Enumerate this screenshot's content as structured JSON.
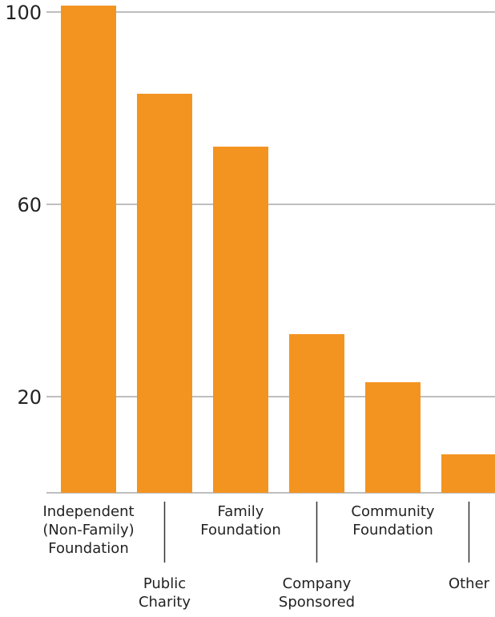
{
  "chart_data": {
    "type": "bar",
    "title": "",
    "xlabel": "",
    "ylabel": "",
    "categories": [
      "Independent (Non-Family) Foundation",
      "Public Charity",
      "Family Foundation",
      "Company Sponsored",
      "Community Foundation",
      "Other"
    ],
    "category_label_lines": [
      [
        "Independent",
        "(Non-Family)",
        "Foundation"
      ],
      [
        "Public",
        "Charity"
      ],
      [
        "Family",
        "Foundation"
      ],
      [
        "Company",
        "Sponsored"
      ],
      [
        "Community",
        "Foundation"
      ],
      [
        "Other"
      ]
    ],
    "values": [
      102,
      83,
      72,
      33,
      23,
      8
    ],
    "ylim": [
      0,
      100
    ],
    "yticks": [
      20,
      60,
      100
    ],
    "ytick_labels": [
      "20",
      "60",
      "100"
    ],
    "grid": true,
    "legend": "none",
    "colors": {
      "bar": "#F39421",
      "grid": "#BEBEBE",
      "text": "#222222"
    }
  }
}
